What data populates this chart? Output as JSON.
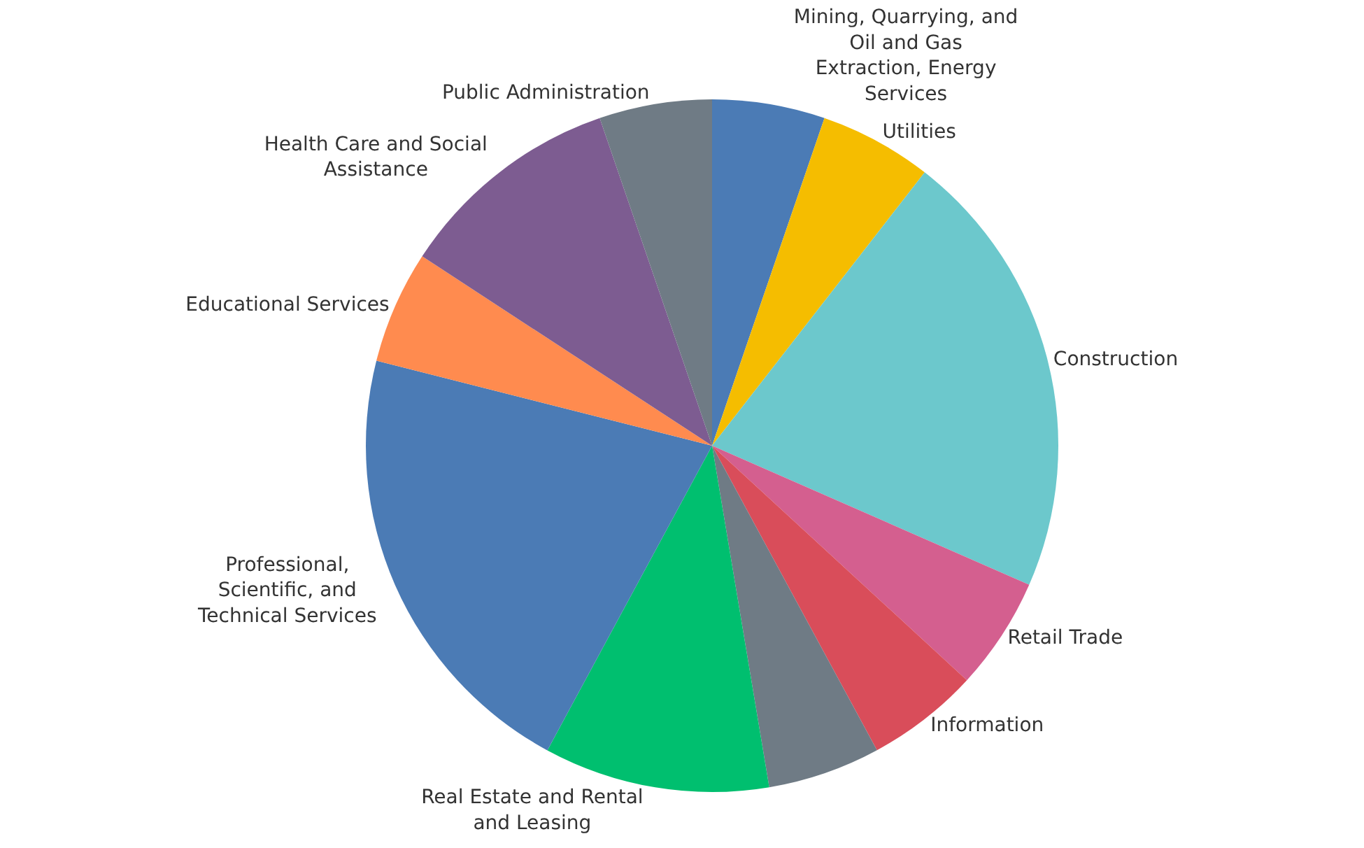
{
  "chart_data": {
    "type": "pie",
    "categories": [
      "Mining, Quarrying, and Oil and Gas Extraction, Energy Services",
      "Utilities",
      "Construction",
      "Retail Trade",
      "Information",
      null,
      "Real Estate and Rental and Leasing",
      "Professional, Scientific, and Technical Services",
      "Educational Services",
      "Health Care and Social Assistance",
      "Public Administration"
    ],
    "values": [
      5.26,
      5.26,
      21.05,
      5.26,
      5.26,
      5.26,
      10.53,
      21.05,
      5.26,
      10.53,
      5.26
    ],
    "colors": [
      "#4b7bb5",
      "#f5bd00",
      "#6cc8cc",
      "#d45f8f",
      "#d94d5a",
      "#6f7b85",
      "#00bf6f",
      "#4b7bb5",
      "#ff8b4f",
      "#7d5c91",
      "#6f7b85"
    ],
    "legend": false
  }
}
